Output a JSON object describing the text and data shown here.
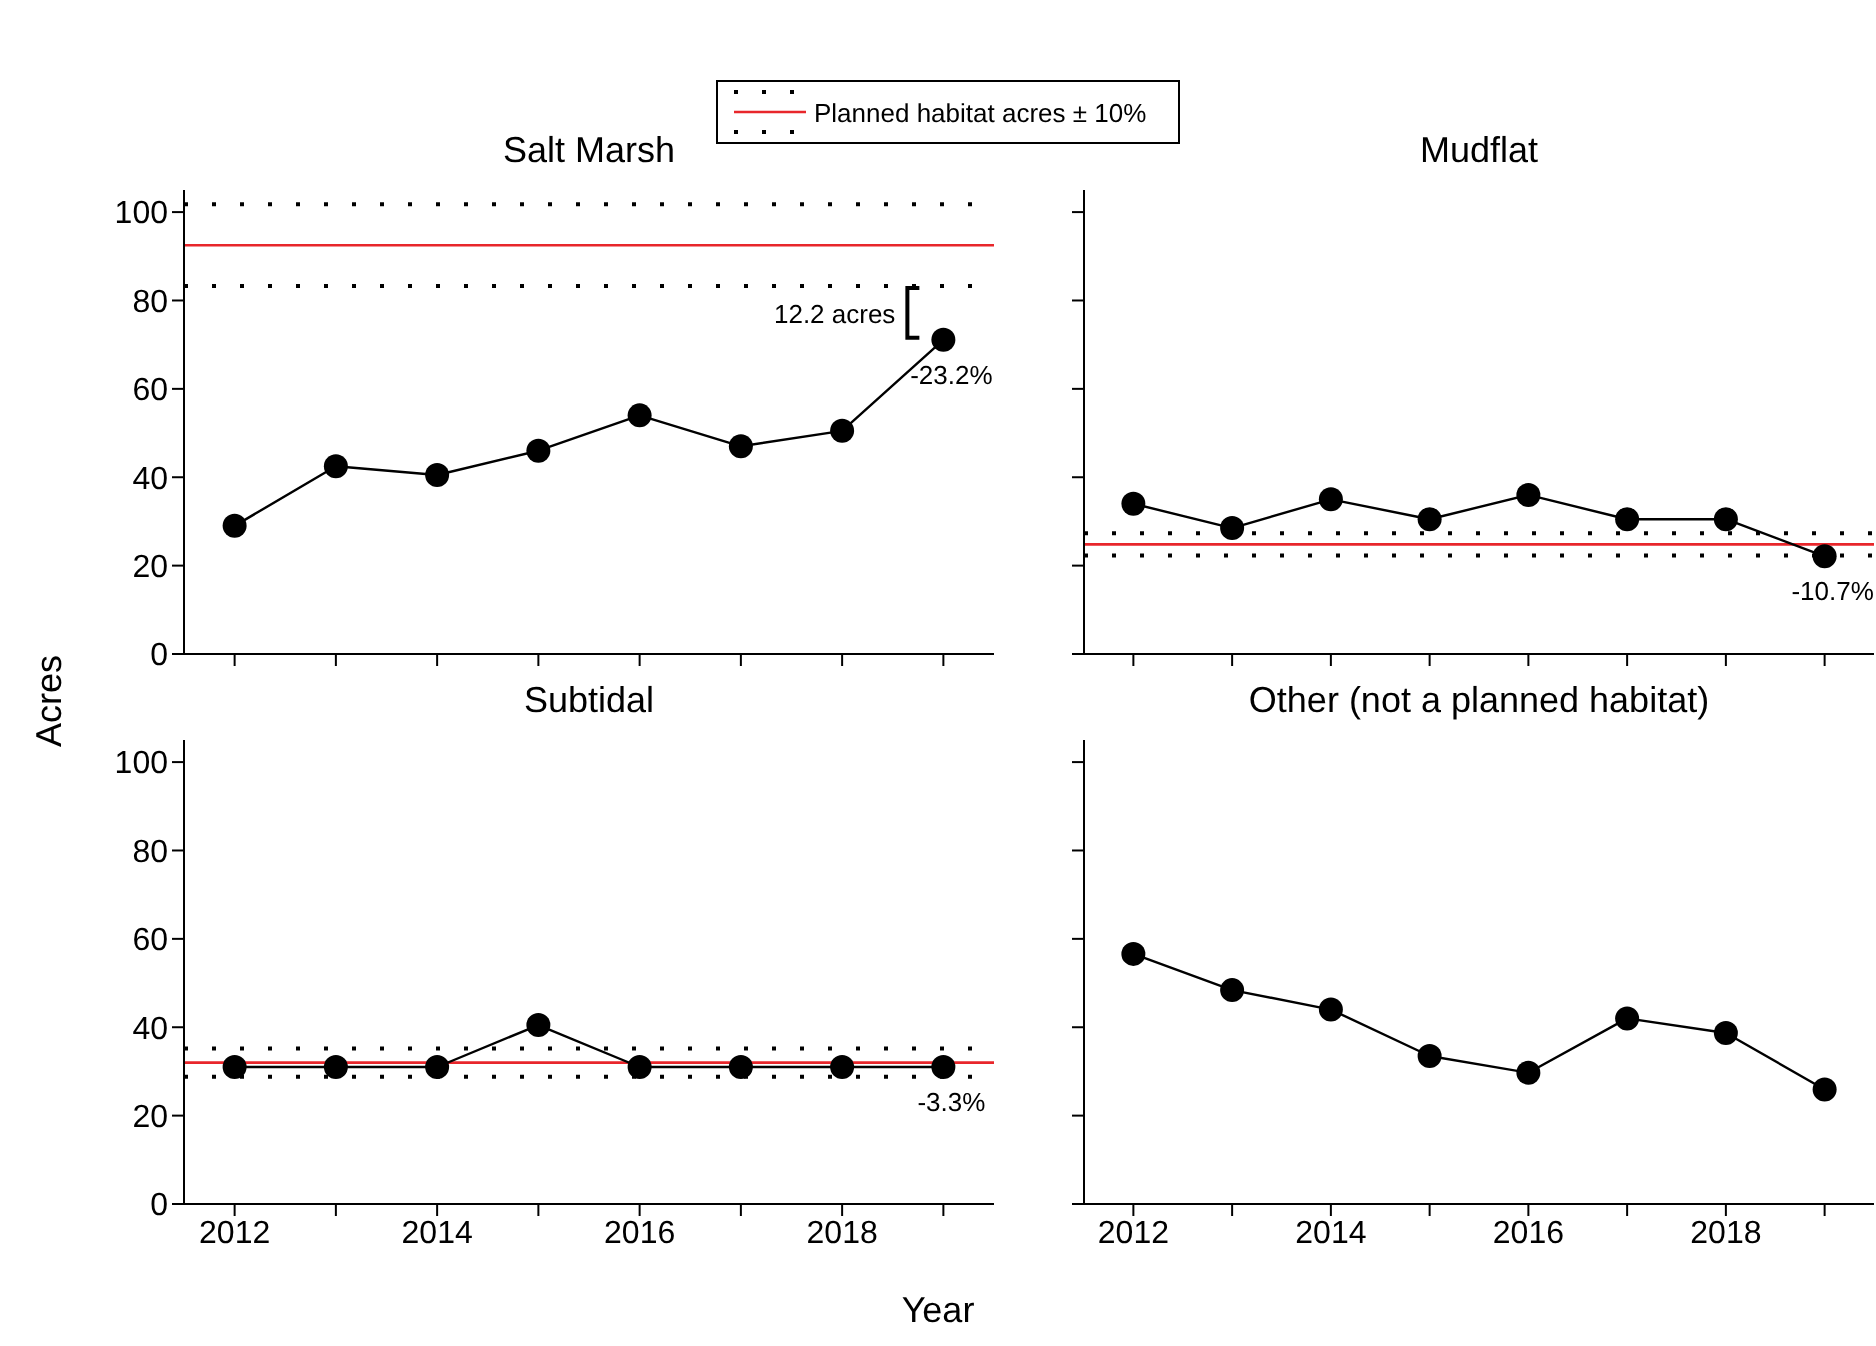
{
  "chart_data": [
    {
      "type": "line",
      "title": "Salt Marsh",
      "ylabel": "Acres",
      "legend": "top",
      "tick_labels": "y",
      "marker": "circle",
      "line_style": "solid",
      "x": [
        2012,
        2013,
        2014,
        2015,
        2016,
        2017,
        2018,
        2019
      ],
      "series": [
        {
          "color": "#000000",
          "values": [
            29,
            42.5,
            40.5,
            46,
            54,
            47,
            50.5,
            71.1
          ]
        }
      ],
      "xlim": [
        2011.5,
        2019.5
      ],
      "xticks": [
        2012,
        {
          "value": 2013,
          "label": null
        },
        2014,
        {
          "value": 2015,
          "label": null
        },
        2016,
        {
          "value": 2017,
          "label": null
        },
        2018,
        {
          "value": 2019,
          "label": null
        }
      ],
      "ylim": [
        0,
        105
      ],
      "yticks": [
        0,
        20,
        40,
        60,
        80,
        100
      ],
      "ref_lines": [
        {
          "axis": "y",
          "value": 92.5,
          "label": "Planned habitat acres ± 10%",
          "color": "#e8262b",
          "line_style": "solid"
        },
        {
          "axis": "y",
          "value": 83.25,
          "color": "#000000",
          "line_style": "dotted"
        },
        {
          "axis": "y",
          "value": 101.75,
          "color": "#000000",
          "line_style": "dotted"
        }
      ],
      "annotations": [
        "12.2 acres",
        "-23.2%"
      ]
    },
    {
      "type": "line",
      "title": "Mudflat",
      "tick_labels": false,
      "marker": "circle",
      "line_style": "solid",
      "x": [
        2012,
        2013,
        2014,
        2015,
        2016,
        2017,
        2018,
        2019
      ],
      "series": [
        {
          "color": "#000000",
          "values": [
            34,
            28.5,
            35,
            30.5,
            36,
            30.5,
            30.5,
            22.1
          ]
        }
      ],
      "xlim": [
        2011.5,
        2019.5
      ],
      "xticks": [
        2012,
        {
          "value": 2013,
          "label": null
        },
        2014,
        {
          "value": 2015,
          "label": null
        },
        2016,
        {
          "value": 2017,
          "label": null
        },
        2018,
        {
          "value": 2019,
          "label": null
        }
      ],
      "ylim": [
        0,
        105
      ],
      "yticks": [
        0,
        20,
        40,
        60,
        80,
        100
      ],
      "ref_lines": [
        {
          "axis": "y",
          "value": 24.8,
          "color": "#e8262b",
          "line_style": "solid"
        },
        {
          "axis": "y",
          "value": 22.3,
          "color": "#000000",
          "line_style": "dotted"
        },
        {
          "axis": "y",
          "value": 27.3,
          "color": "#000000",
          "line_style": "dotted"
        }
      ],
      "annotations": [
        "-10.7%"
      ]
    },
    {
      "type": "line",
      "title": "Subtidal",
      "xlabel": "Year",
      "marker": "circle",
      "line_style": "solid",
      "x": [
        2012,
        2013,
        2014,
        2015,
        2016,
        2017,
        2018,
        2019
      ],
      "series": [
        {
          "color": "#000000",
          "values": [
            31,
            31,
            31,
            40.5,
            31,
            31,
            31,
            31
          ]
        }
      ],
      "xlim": [
        2011.5,
        2019.5
      ],
      "xticks": [
        2012,
        {
          "value": 2013,
          "label": null
        },
        2014,
        {
          "value": 2015,
          "label": null
        },
        2016,
        {
          "value": 2017,
          "label": null
        },
        2018,
        {
          "value": 2019,
          "label": null
        }
      ],
      "ylim": [
        0,
        105
      ],
      "yticks": [
        0,
        20,
        40,
        60,
        80,
        100
      ],
      "ref_lines": [
        {
          "axis": "y",
          "value": 32,
          "color": "#e8262b",
          "line_style": "solid"
        },
        {
          "axis": "y",
          "value": 28.8,
          "color": "#000000",
          "line_style": "dotted"
        },
        {
          "axis": "y",
          "value": 35.2,
          "color": "#000000",
          "line_style": "dotted"
        }
      ],
      "annotations": [
        "-3.3%"
      ]
    },
    {
      "type": "line",
      "title": "Other (not a planned habitat)",
      "tick_labels": "x",
      "marker": "circle",
      "line_style": "solid",
      "x": [
        2012,
        2013,
        2014,
        2015,
        2016,
        2017,
        2018,
        2019
      ],
      "series": [
        {
          "color": "#000000",
          "values": [
            56.6,
            48.4,
            44,
            33.5,
            29.7,
            42,
            38.7,
            25.9
          ]
        }
      ],
      "xlim": [
        2011.5,
        2019.5
      ],
      "xticks": [
        2012,
        {
          "value": 2013,
          "label": null
        },
        2014,
        {
          "value": 2015,
          "label": null
        },
        2016,
        {
          "value": 2017,
          "label": null
        },
        2018,
        {
          "value": 2019,
          "label": null
        }
      ],
      "ylim": [
        0,
        105
      ],
      "yticks": [
        0,
        20,
        40,
        60,
        80,
        100
      ]
    }
  ]
}
